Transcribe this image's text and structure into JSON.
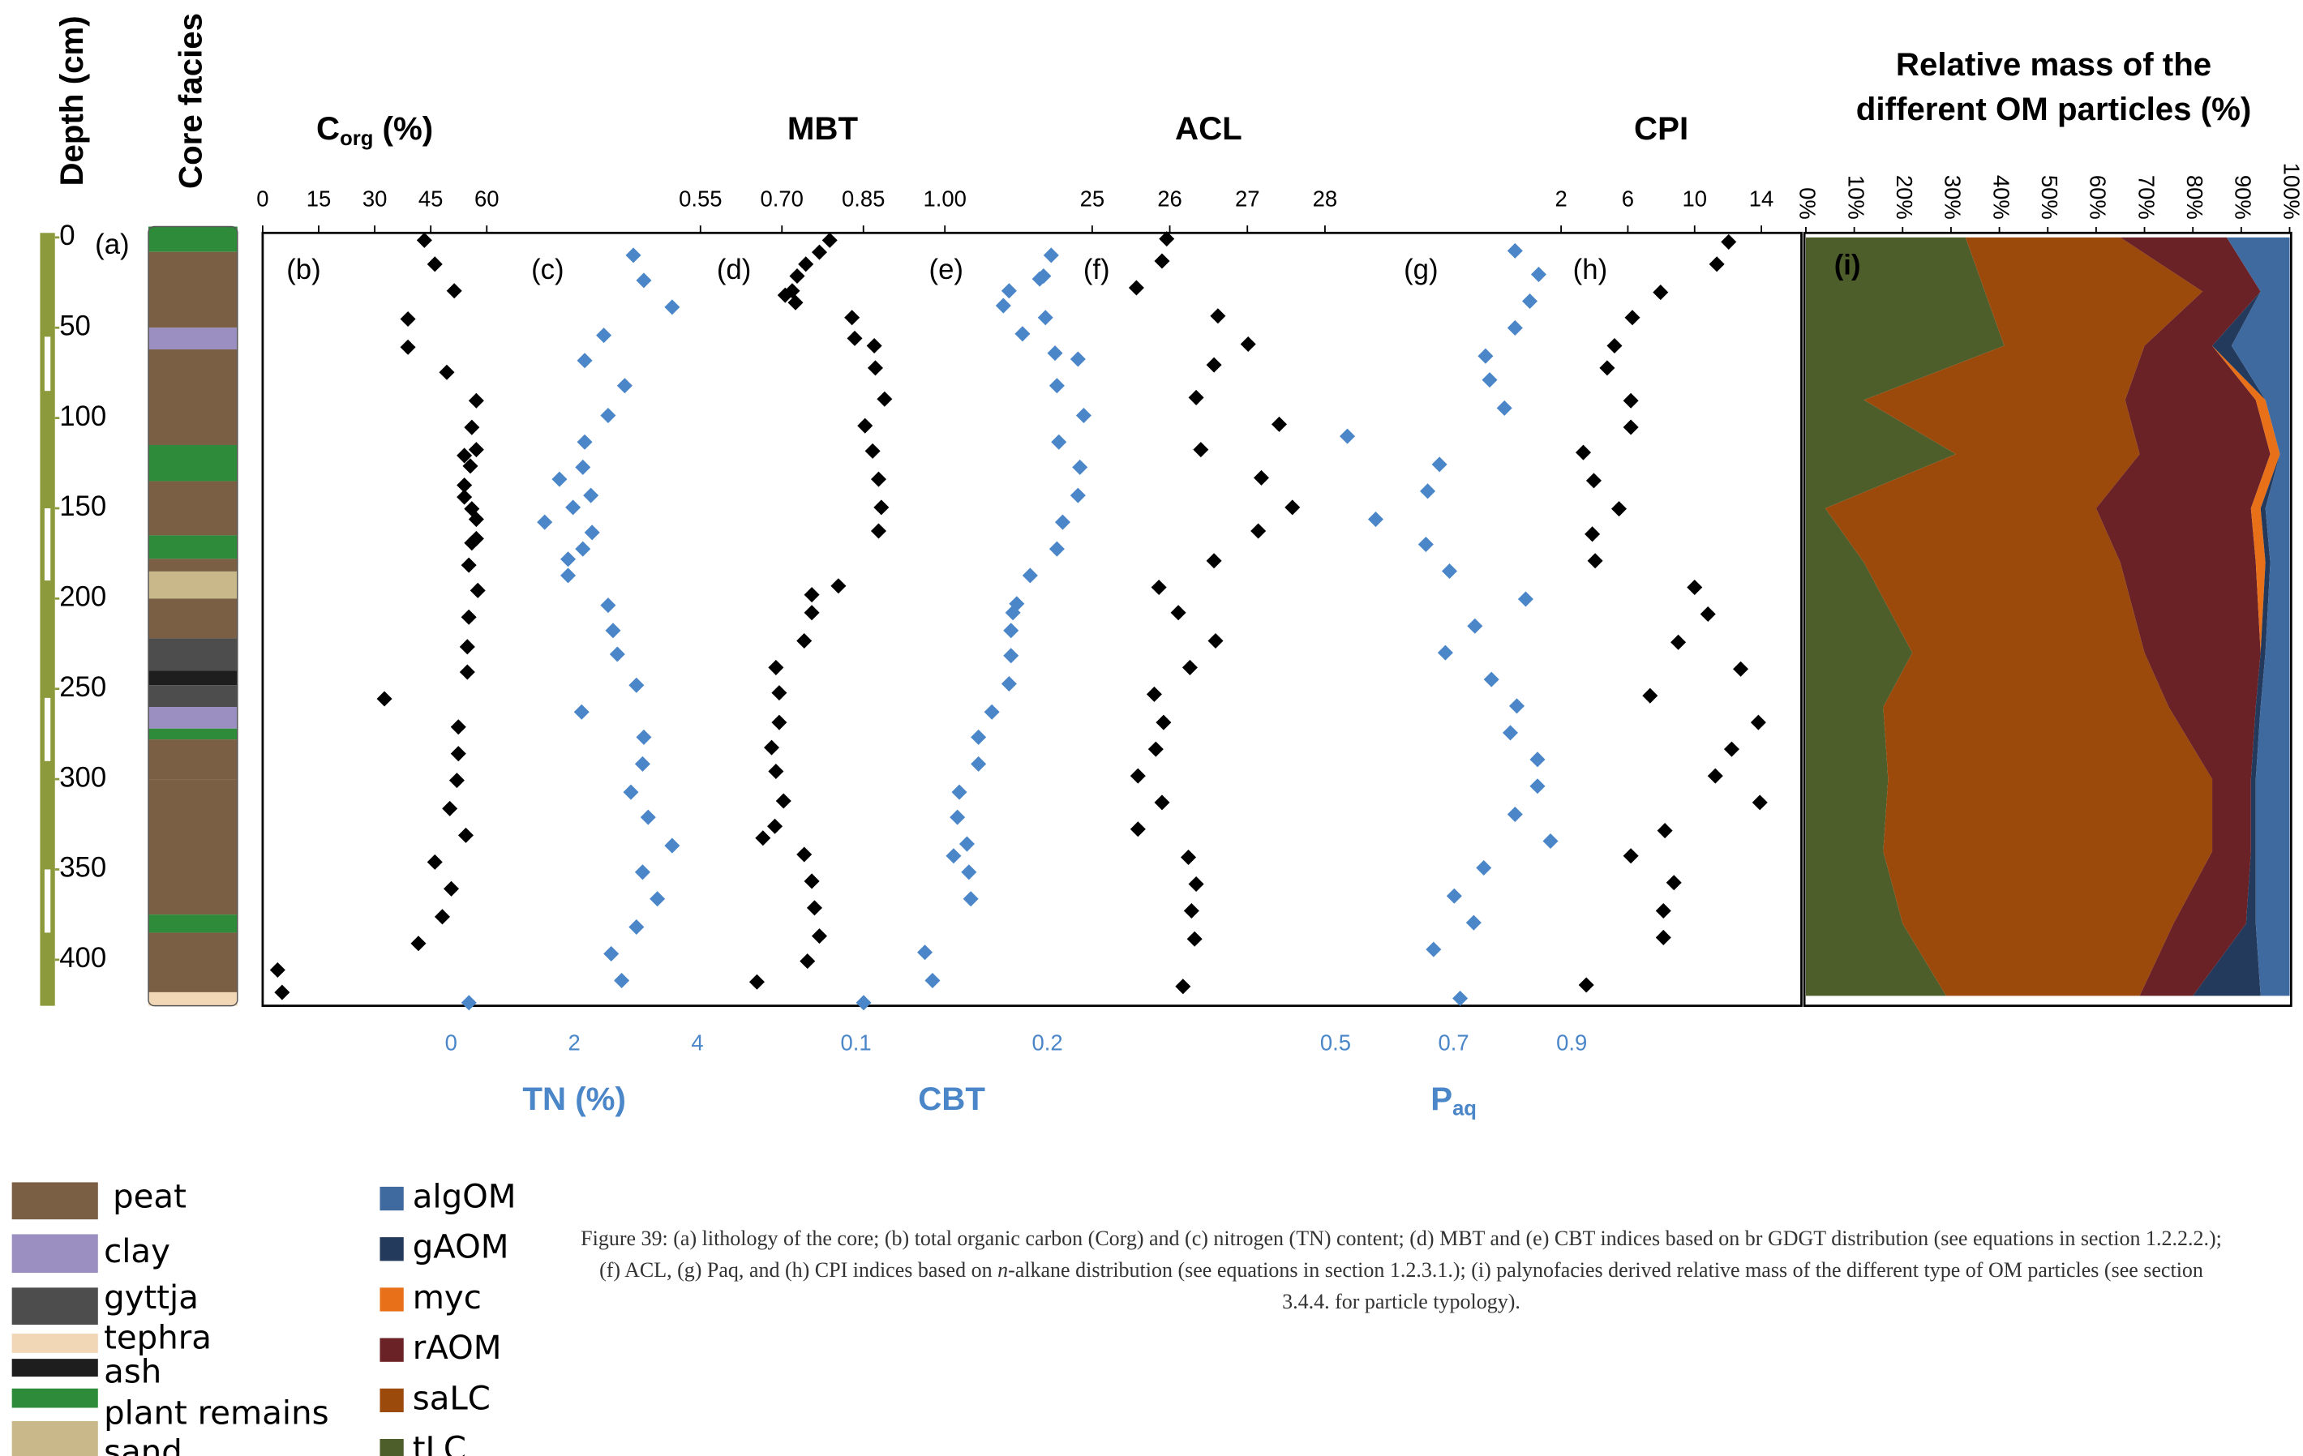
{
  "chart_data": [
    {
      "type": "lithology",
      "label": "(a)",
      "ylabel": "Depth (cm)",
      "title": "Core facies",
      "ylim": [
        -2.5,
        425.5
      ],
      "yticks": [
        0,
        50,
        100,
        150,
        200,
        250,
        300,
        350,
        400
      ],
      "legend": [
        {
          "name": "peat",
          "color": "#7a5f45"
        },
        {
          "name": "clay",
          "color": "#9a8fc0"
        },
        {
          "name": "gyttja",
          "color": "#4d4d4d"
        },
        {
          "name": "tephra",
          "color": "#f2d7b6"
        },
        {
          "name": "ash",
          "color": "#1e1e1e"
        },
        {
          "name": "plant remains",
          "color": "#2e8b3a"
        },
        {
          "name": "sand",
          "color": "#c9b98a"
        }
      ]
    },
    {
      "type": "scatter",
      "label": "(b)",
      "title": "C",
      "title_sub": "org",
      "title_tail": " (%)",
      "xaxis": "top",
      "color": "#000000",
      "xlim": [
        0,
        412
      ],
      "xticks": [
        0,
        15,
        30,
        45,
        60
      ],
      "x": [
        43.3,
        46.1,
        51.3,
        38.9,
        38.9,
        49.3,
        57.2,
        56.0,
        57.2,
        54.0,
        55.6,
        54.0,
        54.0,
        56.0,
        57.2,
        57.2,
        56.0,
        55.2,
        57.6,
        55.2,
        54.8,
        54.8,
        32.6,
        52.4,
        52.4,
        52.0,
        50.1,
        54.4,
        46.1,
        50.5,
        48.1,
        41.7,
        4.0,
        5.2
      ],
      "y": [
        1.6,
        14.8,
        29.6,
        45.2,
        60.8,
        74.7,
        90.4,
        105.2,
        117.5,
        120.8,
        126.6,
        137.2,
        143.8,
        150.3,
        156.1,
        166.8,
        169.2,
        181.5,
        195.5,
        210.3,
        226.7,
        240.7,
        255.5,
        271.1,
        285.9,
        300.7,
        316.3,
        331.1,
        345.9,
        360.7,
        376.2,
        391.0,
        405.7,
        418.1
      ]
    },
    {
      "type": "scatter",
      "label": "(c)",
      "xlabel": "TN (%)",
      "xaxis": "bottom",
      "color": "#4a86c8",
      "xlim": [
        -3.06,
        21.93
      ],
      "xticks": [
        0,
        2,
        4
      ],
      "x": [
        2.96,
        3.13,
        3.59,
        2.48,
        2.17,
        2.82,
        2.55,
        2.17,
        2.14,
        1.76,
        2.27,
        1.98,
        1.52,
        2.29,
        1.9,
        2.14,
        1.9,
        2.55,
        2.63,
        2.7,
        3.01,
        2.12,
        3.13,
        3.11,
        2.92,
        3.2,
        3.59,
        3.11,
        3.35,
        3.01,
        2.6,
        2.77,
        0.29
      ],
      "y": [
        9.9,
        23.8,
        38.6,
        54.2,
        68.2,
        82.1,
        98.6,
        113.3,
        127.3,
        133.9,
        142.9,
        149.5,
        157.7,
        163.4,
        178.2,
        172.5,
        187.2,
        203.7,
        217.7,
        230.8,
        248.0,
        262.8,
        276.8,
        291.6,
        307.2,
        321.1,
        336.8,
        351.5,
        366.3,
        381.9,
        396.7,
        411.5,
        423.8
      ]
    },
    {
      "type": "scatter",
      "label": "(d)",
      "title": "MBT",
      "xaxis": "top",
      "color": "#000000",
      "xlim": [
        -0.256,
        2.577
      ],
      "xticks": [
        0.55,
        {
          "value": 0.7,
          "label": "0.70"
        },
        0.85,
        {
          "value": 1,
          "label": "1.00"
        }
      ],
      "x": [
        0.788,
        0.769,
        0.744,
        0.728,
        0.719,
        0.706,
        0.725,
        0.829,
        0.834,
        0.87,
        0.872,
        0.889,
        0.853,
        0.867,
        0.878,
        0.883,
        0.878,
        0.804,
        0.755,
        0.755,
        0.741,
        0.689,
        0.695,
        0.695,
        0.681,
        0.689,
        0.703,
        0.687,
        0.665,
        0.741,
        0.755,
        0.76,
        0.769,
        0.747,
        0.654
      ],
      "y": [
        1.6,
        8.2,
        14.8,
        21.4,
        29.6,
        32.0,
        36.1,
        44.4,
        55.9,
        60.0,
        72.3,
        89.5,
        104.3,
        118.3,
        133.9,
        149.5,
        162.6,
        193.0,
        197.9,
        207.8,
        223.4,
        238.2,
        252.2,
        268.6,
        282.5,
        295.7,
        312.1,
        326.1,
        332.6,
        341.7,
        356.5,
        371.3,
        386.9,
        400.8,
        412.3
      ]
    },
    {
      "type": "scatter",
      "label": "(e)",
      "xlabel": "CBT",
      "xaxis": "bottom",
      "color": "#4a86c8",
      "xlim": [
        -0.21,
        0.594
      ],
      "xticks": [
        0.1,
        0.2
      ],
      "x": [
        0.202,
        0.198,
        0.196,
        0.18,
        0.177,
        0.199,
        0.187,
        0.204,
        0.216,
        0.205,
        0.219,
        0.206,
        0.217,
        0.216,
        0.208,
        0.205,
        0.191,
        0.184,
        0.182,
        0.181,
        0.181,
        0.18,
        0.171,
        0.164,
        0.164,
        0.154,
        0.153,
        0.158,
        0.151,
        0.159,
        0.16,
        0.136,
        0.14,
        0.104
      ],
      "y": [
        9.9,
        21.4,
        23.0,
        29.6,
        37.8,
        44.4,
        53.4,
        64.1,
        67.4,
        82.1,
        98.6,
        113.3,
        127.3,
        142.9,
        157.7,
        172.5,
        187.2,
        202.9,
        207.8,
        217.7,
        231.6,
        247.2,
        262.8,
        276.8,
        291.6,
        307.2,
        321.1,
        335.9,
        342.5,
        351.5,
        366.3,
        395.9,
        411.5,
        423.8
      ]
    },
    {
      "type": "scatter",
      "label": "(f)",
      "title": "ACL",
      "xaxis": "top",
      "color": "#000000",
      "xlim": [
        14.31,
        34.14
      ],
      "xticks": [
        25,
        26,
        27,
        28
      ],
      "x": [
        25.96,
        25.9,
        25.57,
        26.62,
        27.01,
        26.57,
        26.34,
        27.41,
        26.4,
        27.18,
        27.58,
        27.14,
        26.57,
        25.86,
        26.11,
        26.59,
        26.26,
        25.8,
        25.92,
        25.82,
        25.59,
        25.9,
        25.59,
        26.24,
        26.34,
        26.28,
        26.32,
        26.17
      ],
      "y": [
        0.8,
        13.1,
        27.9,
        43.5,
        59.1,
        70.6,
        88.7,
        103.5,
        117.5,
        133.1,
        149.5,
        162.6,
        179.1,
        193.8,
        207.8,
        223.4,
        238.2,
        253.0,
        268.6,
        283.4,
        298.2,
        312.9,
        327.7,
        343.3,
        358.1,
        372.9,
        388.5,
        414.8
      ]
    },
    {
      "type": "scatter",
      "label": "(g)",
      "xlabel": "P",
      "xlabel_sub": "aq",
      "xaxis": "bottom",
      "color": "#4a86c8",
      "xlim": [
        -1.317,
        1.289
      ],
      "xticks": [
        0.5,
        0.7,
        0.9
      ],
      "x": [
        0.804,
        0.844,
        0.829,
        0.804,
        0.754,
        0.761,
        0.786,
        0.52,
        0.676,
        0.656,
        0.568,
        0.653,
        0.693,
        0.822,
        0.736,
        0.686,
        0.764,
        0.807,
        0.796,
        0.842,
        0.842,
        0.804,
        0.864,
        0.751,
        0.701,
        0.734,
        0.666,
        0.711
      ],
      "y": [
        7.4,
        20.5,
        35.3,
        50.1,
        65.7,
        78.9,
        94.5,
        110.1,
        125.7,
        140.5,
        156.1,
        170.0,
        184.8,
        200.3,
        215.2,
        230.0,
        244.8,
        259.5,
        274.3,
        289.1,
        303.9,
        319.5,
        334.3,
        349.1,
        364.7,
        379.5,
        394.3,
        421.4
      ]
    },
    {
      "type": "scatter",
      "label": "(h)",
      "title": "CPI",
      "xaxis": "top",
      "color": "#000000",
      "xlim": [
        -75.8,
        16.4
      ],
      "xticks": [
        2,
        6,
        10,
        14
      ],
      "x": [
        12.04,
        11.33,
        7.96,
        6.27,
        5.2,
        4.76,
        6.18,
        6.18,
        3.33,
        3.96,
        5.47,
        3.87,
        4.04,
        10.0,
        10.8,
        9.02,
        12.76,
        7.33,
        13.82,
        12.22,
        11.24,
        13.91,
        8.22,
        6.18,
        8.76,
        8.13,
        8.13,
        3.51
      ],
      "y": [
        2.5,
        14.8,
        30.4,
        44.4,
        60.0,
        72.3,
        90.4,
        105.1,
        119.1,
        134.7,
        150.3,
        164.3,
        179.1,
        193.8,
        208.6,
        224.2,
        239.0,
        253.8,
        268.6,
        283.4,
        298.2,
        312.9,
        328.5,
        342.5,
        357.3,
        372.9,
        387.7,
        414.0
      ]
    },
    {
      "type": "stacked_area",
      "label": "(i)",
      "title": [
        "Relative mass of  the",
        "different OM particles (%)"
      ],
      "xlim": [
        0,
        100
      ],
      "xticks": [
        {
          "value": 0,
          "label": "0%"
        },
        {
          "value": 10,
          "label": "10%"
        },
        {
          "value": 20,
          "label": "20%"
        },
        {
          "value": 30,
          "label": "30%"
        },
        {
          "value": 40,
          "label": "40%"
        },
        {
          "value": 50,
          "label": "50%"
        },
        {
          "value": 60,
          "label": "60%"
        },
        {
          "value": 70,
          "label": "70%"
        },
        {
          "value": 80,
          "label": "80%"
        },
        {
          "value": 90,
          "label": "90%"
        },
        {
          "value": 100,
          "label": "100%"
        }
      ],
      "y": [
        0,
        30,
        60,
        90,
        120,
        150,
        180,
        230,
        260,
        300,
        340,
        380,
        420
      ],
      "series": [
        {
          "name": "tLC",
          "color": "#4e5e2b",
          "values": [
            33,
            37,
            41,
            12,
            31,
            4,
            12,
            22,
            16,
            17,
            16,
            20,
            29
          ]
        },
        {
          "name": "saLC",
          "color": "#9c4a0c",
          "values": [
            32,
            45,
            29,
            54,
            38,
            56,
            53,
            48,
            59,
            67,
            68,
            56,
            40
          ]
        },
        {
          "name": "rAOM",
          "color": "#6b2226",
          "values": [
            22,
            12,
            14,
            27,
            27,
            32,
            28,
            24,
            18,
            8,
            8,
            15,
            11
          ]
        },
        {
          "name": "myc",
          "color": "#e87019",
          "values": [
            0,
            0,
            0,
            2,
            2,
            2,
            2,
            0,
            0,
            0,
            0,
            0,
            0
          ]
        },
        {
          "name": "gAOM",
          "color": "#243a5c",
          "values": [
            0,
            0,
            4,
            0,
            0,
            1,
            1,
            1,
            1,
            1,
            1,
            2,
            14
          ]
        },
        {
          "name": "algOM",
          "color": "#3f6aa0",
          "values": [
            13,
            6,
            12,
            5,
            2,
            5,
            4,
            5,
            6,
            7,
            7,
            7,
            6
          ]
        }
      ]
    }
  ],
  "caption": [
    "Figure 39: (a) lithology of the core; (b) total organic carbon (Corg) and (c) nitrogen (TN) content; (d) MBT and (e) CBT indices based on br GDGT distribution (see equations in section 1.2.2.2.); (f) ACL, (g) Paq, and (h) CPI indices based on ",
    "n",
    "-alkane distribution (see equations in section 1.2.3.1.); (i) palynofacies derived relative mass of the different type of OM particles (see section 3.4.4. for particle typology)."
  ]
}
